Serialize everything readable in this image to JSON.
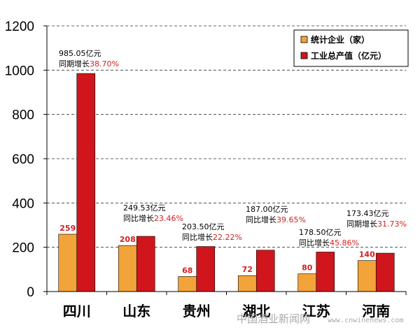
{
  "chart_data": {
    "type": "bar",
    "categories": [
      "四川",
      "山东",
      "贵州",
      "湖北",
      "江苏",
      "河南"
    ],
    "series": [
      {
        "name": "统计企业（家）",
        "color": "#f2a33a",
        "values": [
          259,
          208,
          68,
          72,
          80,
          140
        ]
      },
      {
        "name": "工业总产值（亿元）",
        "color": "#d0161c",
        "values": [
          985.05,
          249.53,
          203.5,
          187.0,
          178.5,
          173.43
        ]
      }
    ],
    "count_labels": [
      "259",
      "208",
      "68",
      "72",
      "80",
      "140"
    ],
    "annotations": [
      {
        "value_text": "985.05亿元",
        "growth_label": "同期增长",
        "growth_pct": "38.70%"
      },
      {
        "value_text": "249.53亿元",
        "growth_label": "同比增长",
        "growth_pct": "23.46%"
      },
      {
        "value_text": "203.50亿元",
        "growth_label": "同比增长",
        "growth_pct": "22.22%"
      },
      {
        "value_text": "187.00亿元",
        "growth_label": "同比增长",
        "growth_pct": "39.65%"
      },
      {
        "value_text": "178.50亿元",
        "growth_label": "同比增长",
        "growth_pct": "45.86%"
      },
      {
        "value_text": "173.43亿元",
        "growth_label": "同期增长",
        "growth_pct": "31.73%"
      }
    ],
    "yticks": [
      0,
      200,
      400,
      600,
      800,
      1000,
      1200
    ],
    "ylim": [
      0,
      1200
    ],
    "grid": "dashed horizontal",
    "legend": "top-right",
    "title": "",
    "xlabel": "",
    "ylabel": ""
  },
  "watermark": {
    "text": "中国酒业新闻网",
    "url": "www.cnwinenews.com"
  }
}
